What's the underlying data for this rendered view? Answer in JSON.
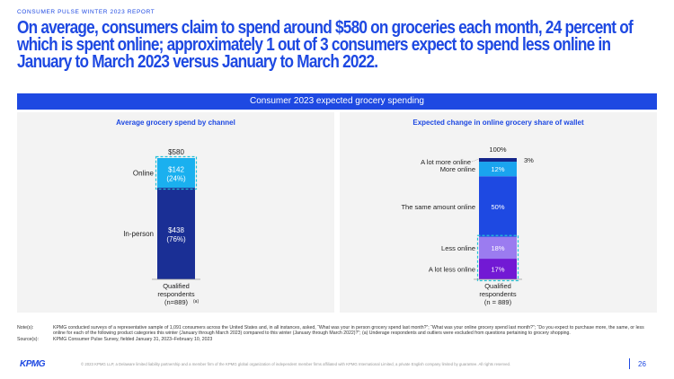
{
  "header": {
    "report_tag": "CONSUMER PULSE WINTER 2023 REPORT",
    "title": "On average, consumers claim to spend around $580 on groceries each month, 24 percent of which is spent online; approximately 1 out of 3 consumers expect to spend less online in January to March 2023 versus January to March 2022."
  },
  "banner": {
    "text": "Consumer 2023 expected grocery spending"
  },
  "colors": {
    "brand": "#1e49e2",
    "inperson": "#1a2f95",
    "online": "#1ab0ef",
    "lotmore": "#13248a",
    "more": "#1aa4ef",
    "same": "#1e49e2",
    "less": "#9b7cf0",
    "lotless": "#7219d4",
    "highlight": "#25c0d6"
  },
  "chart_data": [
    {
      "type": "bar",
      "title": "Average grocery spend by channel",
      "total_label": "$580",
      "categories": [
        "Qualified respondents (n=889) (a)"
      ],
      "series": [
        {
          "name": "In-person",
          "values": [
            438
          ],
          "label_line1": "$438",
          "label_line2": "(76%)"
        },
        {
          "name": "Online",
          "values": [
            142
          ],
          "label_line1": "$142",
          "label_line2": "(24%)"
        }
      ],
      "xlabel_lines": [
        "Qualified",
        "respondents",
        "(n=889)"
      ],
      "xlabel_sup": "(a)"
    },
    {
      "type": "bar",
      "title": "Expected change in online grocery share of wallet",
      "total_label": "100%",
      "categories": [
        "Qualified respondents (n = 889)"
      ],
      "series": [
        {
          "name": "A lot less online",
          "values": [
            17
          ],
          "label": "17%"
        },
        {
          "name": "Less online",
          "values": [
            18
          ],
          "label": "18%"
        },
        {
          "name": "The same amount online",
          "values": [
            50
          ],
          "label": "50%"
        },
        {
          "name": "More online",
          "values": [
            12
          ],
          "label": "12%"
        },
        {
          "name": "A lot more online",
          "values": [
            3
          ],
          "label": "3%"
        }
      ],
      "xlabel_lines": [
        "Qualified",
        "respondents",
        "(n = 889)"
      ]
    }
  ],
  "notes": {
    "notes_label": "Note(s):",
    "notes_text": "KPMG conducted surveys of a representative sample of 1,091 consumers across the United States and, in all instances, asked, “What was your in person grocery spend last month?”; “What was your online grocery spend last month?”; “Do you expect to purchase more, the same, or less online for each of the following product categories this winter (January through March 2023) compared to this winter (January through March 2022)?”; (a) Underage respondents and outliers were excluded from questions pertaining to grocery shopping.",
    "source_label": "Source(s):",
    "source_text": "KPMG Consumer Pulse Survey, fielded January 31, 2023–February 10, 2023"
  },
  "footer": {
    "logo": "KPMG",
    "legal": "© 2023 KPMG LLP, a Delaware limited liability partnership and a member firm of the KPMG global organization of independent member firms affiliated with KPMG International Limited, a private English company limited by guarantee. All rights reserved.",
    "page_number": "26"
  }
}
